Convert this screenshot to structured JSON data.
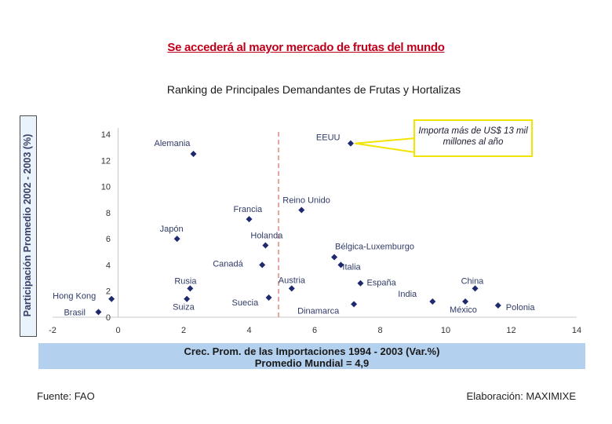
{
  "headline": "Se accederá al mayor mercado de frutas del mundo",
  "source": "Fuente: FAO",
  "credit": "Elaboración: MAXIMIXE",
  "callout": "Importa más de US$ 13 mil millones al año",
  "chart_data": {
    "type": "scatter",
    "title": "Ranking de Principales Demandantes de Frutas y Hortalizas",
    "xlabel": "Crec. Prom. de las Importaciones 1994 - 2003 (Var.%)",
    "xlabel_note": "Promedio Mundial = 4,9",
    "ylabel": "Participación Promedio 2002 - 2003 (%)",
    "xlim": [
      -2,
      14
    ],
    "ylim": [
      0,
      14
    ],
    "xticks": [
      -2,
      0,
      2,
      4,
      6,
      8,
      10,
      12,
      14
    ],
    "yticks": [
      0,
      2,
      4,
      6,
      8,
      10,
      12,
      14
    ],
    "reference_line": {
      "axis": "x",
      "value": 4.9
    },
    "grid": false,
    "marker_color": "#1f2a6e",
    "points": [
      {
        "name": "EEUU",
        "x": 7.1,
        "y": 13.3
      },
      {
        "name": "Alemania",
        "x": 2.3,
        "y": 12.5
      },
      {
        "name": "Reino Unido",
        "x": 5.6,
        "y": 8.2
      },
      {
        "name": "Francia",
        "x": 4.0,
        "y": 7.5
      },
      {
        "name": "Japón",
        "x": 1.8,
        "y": 6.0
      },
      {
        "name": "Holanda",
        "x": 4.5,
        "y": 5.5
      },
      {
        "name": "Bélgica-Luxemburgo",
        "x": 6.6,
        "y": 4.6
      },
      {
        "name": "Canadá",
        "x": 4.4,
        "y": 4.0
      },
      {
        "name": "Italia",
        "x": 6.8,
        "y": 4.0
      },
      {
        "name": "España",
        "x": 7.4,
        "y": 2.6
      },
      {
        "name": "Rusia",
        "x": 2.2,
        "y": 2.2
      },
      {
        "name": "Austria",
        "x": 5.3,
        "y": 2.2
      },
      {
        "name": "China",
        "x": 10.9,
        "y": 2.2
      },
      {
        "name": "Hong Kong",
        "x": -0.2,
        "y": 1.4
      },
      {
        "name": "Suiza",
        "x": 2.1,
        "y": 1.4
      },
      {
        "name": "Suecia",
        "x": 4.6,
        "y": 1.5
      },
      {
        "name": "India",
        "x": 9.6,
        "y": 1.2
      },
      {
        "name": "Dinamarca",
        "x": 7.2,
        "y": 1.0
      },
      {
        "name": "México",
        "x": 10.6,
        "y": 1.2
      },
      {
        "name": "Polonia",
        "x": 11.6,
        "y": 0.9
      },
      {
        "name": "Brasil",
        "x": -0.6,
        "y": 0.4
      }
    ]
  }
}
